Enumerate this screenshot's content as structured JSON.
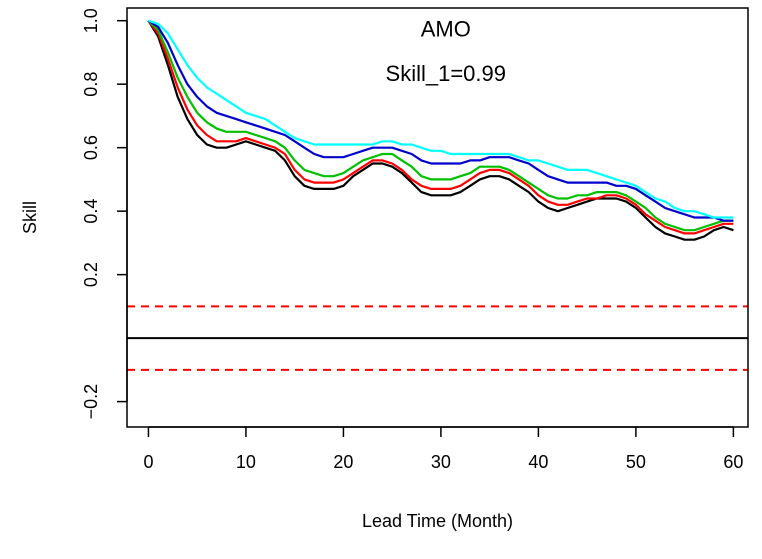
{
  "chart_data": {
    "type": "line",
    "title": "",
    "xlabel": "Lead Time (Month)",
    "ylabel": "Skill",
    "xlim": [
      -2.2,
      61.5
    ],
    "ylim": [
      -0.28,
      1.04
    ],
    "x_ticks": [
      0,
      10,
      20,
      30,
      40,
      50,
      60
    ],
    "x_tick_labels": [
      "0",
      "10",
      "20",
      "30",
      "40",
      "50",
      "60"
    ],
    "y_ticks": [
      -0.2,
      0.2,
      0.4,
      0.6,
      0.8,
      1.0
    ],
    "y_tick_labels": [
      "−0.2",
      "0.2",
      "0.4",
      "0.6",
      "0.8",
      "1.0"
    ],
    "annotations": [
      {
        "text": "AMO",
        "x": 30.5,
        "y": 0.95
      },
      {
        "text": "Skill_1=0.99",
        "x": 30.5,
        "y": 0.81
      }
    ],
    "reference_lines": [
      {
        "y": 0.1,
        "color": "#ff0000",
        "style": "dashed"
      },
      {
        "y": 0.0,
        "color": "#000000",
        "style": "solid"
      },
      {
        "y": -0.1,
        "color": "#ff0000",
        "style": "dashed"
      }
    ],
    "series_style": {
      "colors": [
        "#000000",
        "#ff0000",
        "#00c000",
        "#0000cc",
        "#00ffff"
      ]
    },
    "x": [
      0,
      1,
      2,
      3,
      4,
      5,
      6,
      7,
      8,
      9,
      10,
      11,
      12,
      13,
      14,
      15,
      16,
      17,
      18,
      19,
      20,
      21,
      22,
      23,
      24,
      25,
      26,
      27,
      28,
      29,
      30,
      31,
      32,
      33,
      34,
      35,
      36,
      37,
      38,
      39,
      40,
      41,
      42,
      43,
      44,
      45,
      46,
      47,
      48,
      49,
      50,
      51,
      52,
      53,
      54,
      55,
      56,
      57,
      58,
      59,
      60
    ],
    "series": [
      {
        "color": "#000000",
        "values": [
          1.0,
          0.95,
          0.86,
          0.76,
          0.69,
          0.64,
          0.61,
          0.6,
          0.6,
          0.61,
          0.62,
          0.61,
          0.6,
          0.59,
          0.56,
          0.51,
          0.48,
          0.47,
          0.47,
          0.47,
          0.48,
          0.51,
          0.53,
          0.55,
          0.55,
          0.54,
          0.52,
          0.49,
          0.46,
          0.45,
          0.45,
          0.45,
          0.46,
          0.48,
          0.5,
          0.51,
          0.51,
          0.5,
          0.48,
          0.46,
          0.43,
          0.41,
          0.4,
          0.41,
          0.42,
          0.43,
          0.44,
          0.44,
          0.44,
          0.43,
          0.41,
          0.38,
          0.35,
          0.33,
          0.32,
          0.31,
          0.31,
          0.32,
          0.34,
          0.35,
          0.34
        ]
      },
      {
        "color": "#ff0000",
        "values": [
          1.0,
          0.96,
          0.88,
          0.79,
          0.72,
          0.67,
          0.64,
          0.62,
          0.62,
          0.62,
          0.63,
          0.62,
          0.61,
          0.6,
          0.58,
          0.53,
          0.5,
          0.49,
          0.49,
          0.49,
          0.5,
          0.52,
          0.54,
          0.56,
          0.56,
          0.55,
          0.53,
          0.5,
          0.48,
          0.47,
          0.47,
          0.47,
          0.48,
          0.5,
          0.52,
          0.53,
          0.53,
          0.52,
          0.5,
          0.48,
          0.45,
          0.43,
          0.42,
          0.42,
          0.43,
          0.44,
          0.44,
          0.45,
          0.45,
          0.44,
          0.42,
          0.39,
          0.37,
          0.35,
          0.34,
          0.33,
          0.33,
          0.34,
          0.35,
          0.36,
          0.36
        ]
      },
      {
        "color": "#00c000",
        "values": [
          1.0,
          0.97,
          0.9,
          0.82,
          0.76,
          0.71,
          0.68,
          0.66,
          0.65,
          0.65,
          0.65,
          0.64,
          0.63,
          0.62,
          0.6,
          0.56,
          0.53,
          0.52,
          0.51,
          0.51,
          0.52,
          0.54,
          0.56,
          0.57,
          0.58,
          0.58,
          0.56,
          0.54,
          0.51,
          0.5,
          0.5,
          0.5,
          0.51,
          0.52,
          0.54,
          0.54,
          0.54,
          0.53,
          0.51,
          0.49,
          0.47,
          0.45,
          0.44,
          0.44,
          0.45,
          0.45,
          0.46,
          0.46,
          0.46,
          0.45,
          0.43,
          0.41,
          0.38,
          0.36,
          0.35,
          0.34,
          0.34,
          0.35,
          0.36,
          0.37,
          0.37
        ]
      },
      {
        "color": "#0000cc",
        "values": [
          1.0,
          0.98,
          0.93,
          0.86,
          0.8,
          0.76,
          0.73,
          0.71,
          0.7,
          0.69,
          0.68,
          0.67,
          0.66,
          0.65,
          0.64,
          0.62,
          0.6,
          0.58,
          0.57,
          0.57,
          0.57,
          0.58,
          0.59,
          0.6,
          0.6,
          0.6,
          0.59,
          0.58,
          0.56,
          0.55,
          0.55,
          0.55,
          0.55,
          0.56,
          0.56,
          0.57,
          0.57,
          0.57,
          0.56,
          0.55,
          0.53,
          0.51,
          0.5,
          0.49,
          0.49,
          0.49,
          0.49,
          0.49,
          0.48,
          0.48,
          0.47,
          0.45,
          0.43,
          0.41,
          0.4,
          0.39,
          0.38,
          0.38,
          0.38,
          0.37,
          0.37
        ]
      },
      {
        "color": "#00ffff",
        "values": [
          1.0,
          0.99,
          0.96,
          0.91,
          0.86,
          0.82,
          0.79,
          0.77,
          0.75,
          0.73,
          0.71,
          0.7,
          0.69,
          0.67,
          0.65,
          0.63,
          0.62,
          0.61,
          0.61,
          0.61,
          0.61,
          0.61,
          0.61,
          0.61,
          0.62,
          0.62,
          0.61,
          0.61,
          0.6,
          0.59,
          0.59,
          0.58,
          0.58,
          0.58,
          0.58,
          0.58,
          0.58,
          0.58,
          0.57,
          0.56,
          0.56,
          0.55,
          0.54,
          0.53,
          0.53,
          0.53,
          0.52,
          0.51,
          0.5,
          0.49,
          0.48,
          0.46,
          0.44,
          0.43,
          0.41,
          0.4,
          0.4,
          0.39,
          0.38,
          0.38,
          0.38
        ]
      }
    ]
  }
}
